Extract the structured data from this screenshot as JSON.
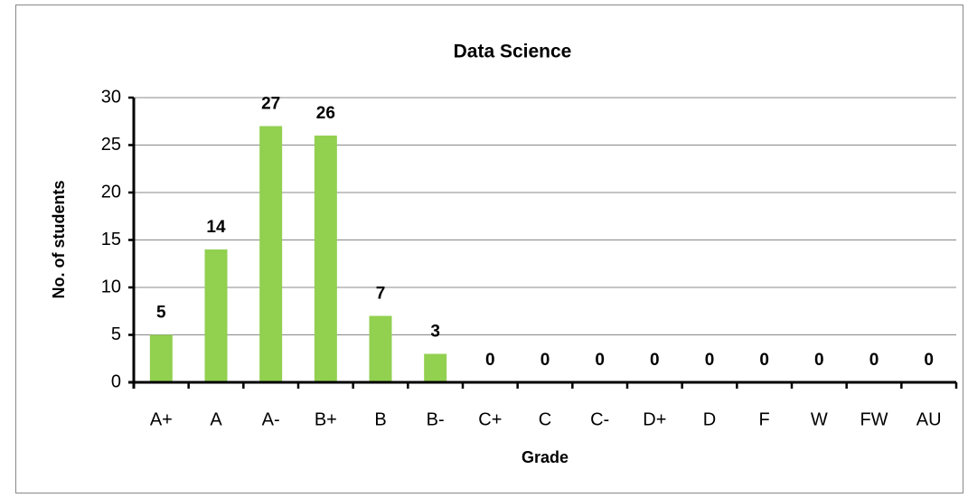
{
  "chart_data": {
    "type": "bar",
    "title": "Data Science",
    "x_label": "Grade",
    "y_label": "No. of students",
    "categories": [
      "A+",
      "A",
      "A-",
      "B+",
      "B",
      "B-",
      "C+",
      "C",
      "C-",
      "D+",
      "D",
      "F",
      "W",
      "FW",
      "AU"
    ],
    "values": [
      5,
      14,
      27,
      26,
      7,
      3,
      0,
      0,
      0,
      0,
      0,
      0,
      0,
      0,
      0
    ],
    "color": "#92d050",
    "ylim": [
      0,
      30
    ],
    "yticks": [
      0,
      5,
      10,
      15,
      20,
      25,
      30
    ],
    "grid": true
  }
}
